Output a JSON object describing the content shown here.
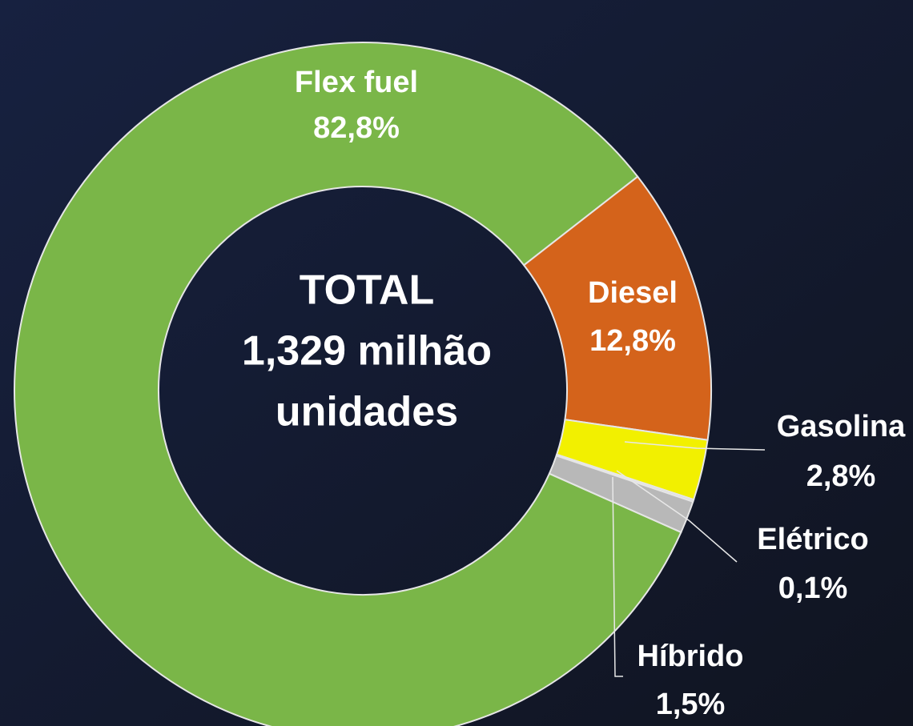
{
  "chart_data": {
    "type": "donut",
    "center_text": [
      "TOTAL",
      "1,329 milhão",
      "unidades"
    ],
    "categories": [
      "Flex fuel",
      "Diesel",
      "Gasolina",
      "Elétrico",
      "Híbrido"
    ],
    "values": [
      82.8,
      12.8,
      2.8,
      0.1,
      1.5
    ],
    "value_labels": [
      "82,8%",
      "12,8%",
      "2,8%",
      "0,1%",
      "1,5%"
    ],
    "colors": [
      "#7ab648",
      "#d4631b",
      "#f2f000",
      "#d9d9d9",
      "#b8b8b8"
    ]
  }
}
